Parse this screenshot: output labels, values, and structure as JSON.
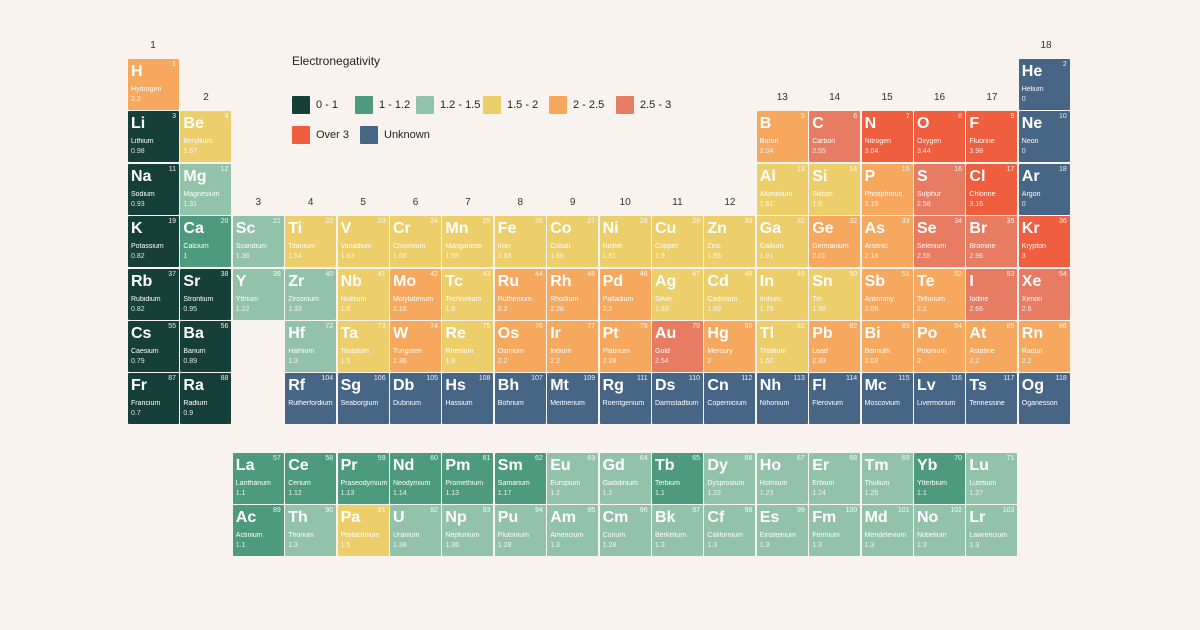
{
  "legend": {
    "title": "Electronegativity",
    "items": [
      {
        "key": "c1",
        "label": "0 - 1",
        "color": "#173f39"
      },
      {
        "key": "c2",
        "label": "1 - 1.2",
        "color": "#4e9a7f"
      },
      {
        "key": "c3",
        "label": "1.2 - 1.5",
        "color": "#92c2aa"
      },
      {
        "key": "c4",
        "label": "1.5 - 2",
        "color": "#ecce6a"
      },
      {
        "key": "c5",
        "label": "2 - 2.5",
        "color": "#f6a95e"
      },
      {
        "key": "c6",
        "label": "2.5 - 3",
        "color": "#e77c63"
      },
      {
        "key": "c7",
        "label": "Over 3",
        "color": "#ef5e3e"
      },
      {
        "key": "c8",
        "label": "Unknown",
        "color": "#476585"
      }
    ]
  },
  "group_labels": [
    "1",
    "2",
    "3",
    "4",
    "5",
    "6",
    "7",
    "8",
    "9",
    "10",
    "11",
    "12",
    "13",
    "14",
    "15",
    "16",
    "17",
    "18"
  ],
  "elements": [
    {
      "num": 1,
      "symbol": "H",
      "name": "Hydrogen",
      "en": "2.2",
      "cat": "c5"
    },
    {
      "num": 2,
      "symbol": "He",
      "name": "Helium",
      "en": "0",
      "cat": "c8"
    },
    {
      "num": 3,
      "symbol": "Li",
      "name": "Lithium",
      "en": "0.98",
      "cat": "c1"
    },
    {
      "num": 4,
      "symbol": "Be",
      "name": "Beryllium",
      "en": "1.57",
      "cat": "c4"
    },
    {
      "num": 5,
      "symbol": "B",
      "name": "Boron",
      "en": "2.04",
      "cat": "c5"
    },
    {
      "num": 6,
      "symbol": "C",
      "name": "Carbon",
      "en": "2.55",
      "cat": "c6"
    },
    {
      "num": 7,
      "symbol": "N",
      "name": "Nitrogen",
      "en": "3.04",
      "cat": "c7"
    },
    {
      "num": 8,
      "symbol": "O",
      "name": "Oxygen",
      "en": "3.44",
      "cat": "c7"
    },
    {
      "num": 9,
      "symbol": "F",
      "name": "Fluorine",
      "en": "3.98",
      "cat": "c7"
    },
    {
      "num": 10,
      "symbol": "Ne",
      "name": "Neon",
      "en": "0",
      "cat": "c8"
    },
    {
      "num": 11,
      "symbol": "Na",
      "name": "Sodium",
      "en": "0.93",
      "cat": "c1"
    },
    {
      "num": 12,
      "symbol": "Mg",
      "name": "Magnesium",
      "en": "1.31",
      "cat": "c3"
    },
    {
      "num": 13,
      "symbol": "Al",
      "name": "Aluminium",
      "en": "1.61",
      "cat": "c4"
    },
    {
      "num": 14,
      "symbol": "Si",
      "name": "Silicon",
      "en": "1.9",
      "cat": "c4"
    },
    {
      "num": 15,
      "symbol": "P",
      "name": "Phosphorus",
      "en": "2.19",
      "cat": "c5"
    },
    {
      "num": 16,
      "symbol": "S",
      "name": "Sulphur",
      "en": "2.58",
      "cat": "c6"
    },
    {
      "num": 17,
      "symbol": "Cl",
      "name": "Chlorine",
      "en": "3.16",
      "cat": "c7"
    },
    {
      "num": 18,
      "symbol": "Ar",
      "name": "Argon",
      "en": "0",
      "cat": "c8"
    },
    {
      "num": 19,
      "symbol": "K",
      "name": "Potassium",
      "en": "0.82",
      "cat": "c1"
    },
    {
      "num": 20,
      "symbol": "Ca",
      "name": "Calcium",
      "en": "1",
      "cat": "c2"
    },
    {
      "num": 21,
      "symbol": "Sc",
      "name": "Scandium",
      "en": "1.36",
      "cat": "c3"
    },
    {
      "num": 22,
      "symbol": "Ti",
      "name": "Titanium",
      "en": "1.54",
      "cat": "c4"
    },
    {
      "num": 23,
      "symbol": "V",
      "name": "Vanadium",
      "en": "1.63",
      "cat": "c4"
    },
    {
      "num": 24,
      "symbol": "Cr",
      "name": "Chromium",
      "en": "1.66",
      "cat": "c4"
    },
    {
      "num": 25,
      "symbol": "Mn",
      "name": "Manganese",
      "en": "1.55",
      "cat": "c4"
    },
    {
      "num": 26,
      "symbol": "Fe",
      "name": "Iron",
      "en": "1.83",
      "cat": "c4"
    },
    {
      "num": 27,
      "symbol": "Co",
      "name": "Cobalt",
      "en": "1.88",
      "cat": "c4"
    },
    {
      "num": 28,
      "symbol": "Ni",
      "name": "Nickel",
      "en": "1.91",
      "cat": "c4"
    },
    {
      "num": 29,
      "symbol": "Cu",
      "name": "Copper",
      "en": "1.9",
      "cat": "c4"
    },
    {
      "num": 30,
      "symbol": "Zn",
      "name": "Zinc",
      "en": "1.65",
      "cat": "c4"
    },
    {
      "num": 31,
      "symbol": "Ga",
      "name": "Gallium",
      "en": "1.81",
      "cat": "c4"
    },
    {
      "num": 32,
      "symbol": "Ge",
      "name": "Germanium",
      "en": "2.01",
      "cat": "c5"
    },
    {
      "num": 33,
      "symbol": "As",
      "name": "Arsenic",
      "en": "2.18",
      "cat": "c5"
    },
    {
      "num": 34,
      "symbol": "Se",
      "name": "Selenium",
      "en": "2.55",
      "cat": "c6"
    },
    {
      "num": 35,
      "symbol": "Br",
      "name": "Bromine",
      "en": "2.96",
      "cat": "c6"
    },
    {
      "num": 36,
      "symbol": "Kr",
      "name": "Krypton",
      "en": "3",
      "cat": "c7"
    },
    {
      "num": 37,
      "symbol": "Rb",
      "name": "Rubidium",
      "en": "0.82",
      "cat": "c1"
    },
    {
      "num": 38,
      "symbol": "Sr",
      "name": "Strontium",
      "en": "0.95",
      "cat": "c1"
    },
    {
      "num": 39,
      "symbol": "Y",
      "name": "Yttrium",
      "en": "1.22",
      "cat": "c3"
    },
    {
      "num": 40,
      "symbol": "Zr",
      "name": "Zirconium",
      "en": "1.33",
      "cat": "c3"
    },
    {
      "num": 41,
      "symbol": "Nb",
      "name": "Niobium",
      "en": "1.6",
      "cat": "c4"
    },
    {
      "num": 42,
      "symbol": "Mo",
      "name": "Molybdenum",
      "en": "2.16",
      "cat": "c5"
    },
    {
      "num": 43,
      "symbol": "Tc",
      "name": "Technetium",
      "en": "1.9",
      "cat": "c4"
    },
    {
      "num": 44,
      "symbol": "Ru",
      "name": "Ruthenium",
      "en": "2.2",
      "cat": "c5"
    },
    {
      "num": 45,
      "symbol": "Rh",
      "name": "Rhodium",
      "en": "2.28",
      "cat": "c5"
    },
    {
      "num": 46,
      "symbol": "Pd",
      "name": "Palladium",
      "en": "2.2",
      "cat": "c5"
    },
    {
      "num": 47,
      "symbol": "Ag",
      "name": "Silver",
      "en": "1.93",
      "cat": "c4"
    },
    {
      "num": 48,
      "symbol": "Cd",
      "name": "Cadmium",
      "en": "1.69",
      "cat": "c4"
    },
    {
      "num": 49,
      "symbol": "In",
      "name": "Indium",
      "en": "1.78",
      "cat": "c4"
    },
    {
      "num": 50,
      "symbol": "Sn",
      "name": "Tin",
      "en": "1.96",
      "cat": "c4"
    },
    {
      "num": 51,
      "symbol": "Sb",
      "name": "Antimony",
      "en": "2.05",
      "cat": "c5"
    },
    {
      "num": 52,
      "symbol": "Te",
      "name": "Tellurium",
      "en": "2.1",
      "cat": "c5"
    },
    {
      "num": 53,
      "symbol": "I",
      "name": "Iodine",
      "en": "2.66",
      "cat": "c6"
    },
    {
      "num": 54,
      "symbol": "Xe",
      "name": "Xenon",
      "en": "2.6",
      "cat": "c6"
    },
    {
      "num": 55,
      "symbol": "Cs",
      "name": "Caesium",
      "en": "0.79",
      "cat": "c1"
    },
    {
      "num": 56,
      "symbol": "Ba",
      "name": "Barium",
      "en": "0.89",
      "cat": "c1"
    },
    {
      "num": 72,
      "symbol": "Hf",
      "name": "Hafnium",
      "en": "1.3",
      "cat": "c3"
    },
    {
      "num": 73,
      "symbol": "Ta",
      "name": "Tantalum",
      "en": "1.5",
      "cat": "c4"
    },
    {
      "num": 74,
      "symbol": "W",
      "name": "Tungsten",
      "en": "2.36",
      "cat": "c5"
    },
    {
      "num": 75,
      "symbol": "Re",
      "name": "Rhenium",
      "en": "1.9",
      "cat": "c4"
    },
    {
      "num": 76,
      "symbol": "Os",
      "name": "Osmium",
      "en": "2.2",
      "cat": "c5"
    },
    {
      "num": 77,
      "symbol": "Ir",
      "name": "Iridium",
      "en": "2.2",
      "cat": "c5"
    },
    {
      "num": 78,
      "symbol": "Pt",
      "name": "Platinum",
      "en": "2.28",
      "cat": "c5"
    },
    {
      "num": 79,
      "symbol": "Au",
      "name": "Gold",
      "en": "2.54",
      "cat": "c6"
    },
    {
      "num": 80,
      "symbol": "Hg",
      "name": "Mercury",
      "en": "2",
      "cat": "c5"
    },
    {
      "num": 81,
      "symbol": "Tl",
      "name": "Thallium",
      "en": "1.62",
      "cat": "c4"
    },
    {
      "num": 82,
      "symbol": "Pb",
      "name": "Lead",
      "en": "2.33",
      "cat": "c5"
    },
    {
      "num": 83,
      "symbol": "Bi",
      "name": "Bismuth",
      "en": "2.02",
      "cat": "c5"
    },
    {
      "num": 84,
      "symbol": "Po",
      "name": "Polonium",
      "en": "2",
      "cat": "c5"
    },
    {
      "num": 85,
      "symbol": "At",
      "name": "Astatine",
      "en": "2.2",
      "cat": "c5"
    },
    {
      "num": 86,
      "symbol": "Rn",
      "name": "Radon",
      "en": "2.2",
      "cat": "c5"
    },
    {
      "num": 87,
      "symbol": "Fr",
      "name": "Francium",
      "en": "0.7",
      "cat": "c1"
    },
    {
      "num": 88,
      "symbol": "Ra",
      "name": "Radium",
      "en": "0.9",
      "cat": "c1"
    },
    {
      "num": 104,
      "symbol": "Rf",
      "name": "Rutherfordium",
      "en": "",
      "cat": "c8"
    },
    {
      "num": 106,
      "symbol": "Sg",
      "name": "Seaborgium",
      "en": "",
      "cat": "c8"
    },
    {
      "num": 105,
      "symbol": "Db",
      "name": "Dubnium",
      "en": "",
      "cat": "c8"
    },
    {
      "num": 108,
      "symbol": "Hs",
      "name": "Hassium",
      "en": "",
      "cat": "c8"
    },
    {
      "num": 107,
      "symbol": "Bh",
      "name": "Bohrium",
      "en": "",
      "cat": "c8"
    },
    {
      "num": 109,
      "symbol": "Mt",
      "name": "Meitnerium",
      "en": "",
      "cat": "c8"
    },
    {
      "num": 111,
      "symbol": "Rg",
      "name": "Roentgenium",
      "en": "",
      "cat": "c8"
    },
    {
      "num": 110,
      "symbol": "Ds",
      "name": "Darmstadtium",
      "en": "",
      "cat": "c8"
    },
    {
      "num": 112,
      "symbol": "Cn",
      "name": "Copernicium",
      "en": "",
      "cat": "c8"
    },
    {
      "num": 113,
      "symbol": "Nh",
      "name": "Nihonium",
      "en": "",
      "cat": "c8"
    },
    {
      "num": 114,
      "symbol": "Fl",
      "name": "Flerovium",
      "en": "",
      "cat": "c8"
    },
    {
      "num": 115,
      "symbol": "Mc",
      "name": "Moscovium",
      "en": "",
      "cat": "c8"
    },
    {
      "num": 116,
      "symbol": "Lv",
      "name": "Livermorium",
      "en": "",
      "cat": "c8"
    },
    {
      "num": 117,
      "symbol": "Ts",
      "name": "Tennessine",
      "en": "",
      "cat": "c8"
    },
    {
      "num": 118,
      "symbol": "Og",
      "name": "Oganesson",
      "en": "",
      "cat": "c8"
    },
    {
      "num": 57,
      "symbol": "La",
      "name": "Lanthanum",
      "en": "1.1",
      "cat": "c2"
    },
    {
      "num": 58,
      "symbol": "Ce",
      "name": "Cerium",
      "en": "1.12",
      "cat": "c2"
    },
    {
      "num": 59,
      "symbol": "Pr",
      "name": "Praseodymium",
      "en": "1.13",
      "cat": "c2"
    },
    {
      "num": 60,
      "symbol": "Nd",
      "name": "Neodymium",
      "en": "1.14",
      "cat": "c2"
    },
    {
      "num": 61,
      "symbol": "Pm",
      "name": "Promethium",
      "en": "1.13",
      "cat": "c2"
    },
    {
      "num": 62,
      "symbol": "Sm",
      "name": "Samarium",
      "en": "1.17",
      "cat": "c2"
    },
    {
      "num": 63,
      "symbol": "Eu",
      "name": "Europium",
      "en": "1.2",
      "cat": "c3"
    },
    {
      "num": 64,
      "symbol": "Gd",
      "name": "Gadolinium",
      "en": "1.2",
      "cat": "c3"
    },
    {
      "num": 65,
      "symbol": "Tb",
      "name": "Terbium",
      "en": "1.1",
      "cat": "c2"
    },
    {
      "num": 66,
      "symbol": "Dy",
      "name": "Dysprosium",
      "en": "1.22",
      "cat": "c3"
    },
    {
      "num": 67,
      "symbol": "Ho",
      "name": "Holmium",
      "en": "1.23",
      "cat": "c3"
    },
    {
      "num": 68,
      "symbol": "Er",
      "name": "Erbium",
      "en": "1.24",
      "cat": "c3"
    },
    {
      "num": 69,
      "symbol": "Tm",
      "name": "Thulium",
      "en": "1.25",
      "cat": "c3"
    },
    {
      "num": 70,
      "symbol": "Yb",
      "name": "Ytterbium",
      "en": "1.1",
      "cat": "c2"
    },
    {
      "num": 71,
      "symbol": "Lu",
      "name": "Lutetium",
      "en": "1.27",
      "cat": "c3"
    },
    {
      "num": 89,
      "symbol": "Ac",
      "name": "Actinium",
      "en": "1.1",
      "cat": "c2"
    },
    {
      "num": 90,
      "symbol": "Th",
      "name": "Thorium",
      "en": "1.3",
      "cat": "c3"
    },
    {
      "num": 91,
      "symbol": "Pa",
      "name": "Protactinium",
      "en": "1.5",
      "cat": "c4"
    },
    {
      "num": 92,
      "symbol": "U",
      "name": "Uranium",
      "en": "1.38",
      "cat": "c3"
    },
    {
      "num": 93,
      "symbol": "Np",
      "name": "Neptunium",
      "en": "1.36",
      "cat": "c3"
    },
    {
      "num": 94,
      "symbol": "Pu",
      "name": "Plutonium",
      "en": "1.28",
      "cat": "c3"
    },
    {
      "num": 95,
      "symbol": "Am",
      "name": "Americium",
      "en": "1.3",
      "cat": "c3"
    },
    {
      "num": 96,
      "symbol": "Cm",
      "name": "Curium",
      "en": "1.28",
      "cat": "c3"
    },
    {
      "num": 97,
      "symbol": "Bk",
      "name": "Berkelium",
      "en": "1.3",
      "cat": "c3"
    },
    {
      "num": 98,
      "symbol": "Cf",
      "name": "Californium",
      "en": "1.3",
      "cat": "c3"
    },
    {
      "num": 99,
      "symbol": "Es",
      "name": "Einsteinium",
      "en": "1.3",
      "cat": "c3"
    },
    {
      "num": 100,
      "symbol": "Fm",
      "name": "Fermium",
      "en": "1.3",
      "cat": "c3"
    },
    {
      "num": 101,
      "symbol": "Md",
      "name": "Mendelevium",
      "en": "1.3",
      "cat": "c3"
    },
    {
      "num": 102,
      "symbol": "No",
      "name": "Nobelium",
      "en": "1.3",
      "cat": "c3"
    },
    {
      "num": 103,
      "symbol": "Lr",
      "name": "Lawrencium",
      "en": "1.3",
      "cat": "c3"
    }
  ]
}
